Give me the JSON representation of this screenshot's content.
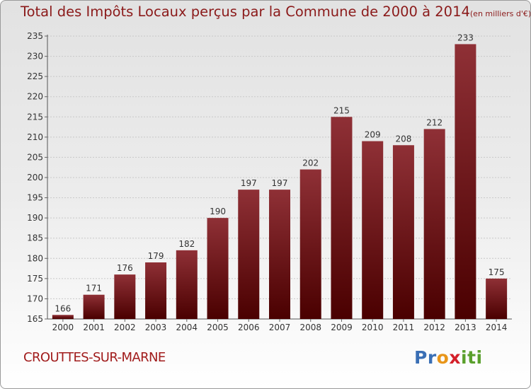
{
  "chart_data": {
    "type": "bar",
    "title": "Total des Impôts Locaux perçus par la Commune de 2000 à 2014",
    "title_unit": "(en milliers d'€)",
    "categories": [
      "2000",
      "2001",
      "2002",
      "2003",
      "2004",
      "2005",
      "2006",
      "2007",
      "2008",
      "2009",
      "2010",
      "2011",
      "2012",
      "2013",
      "2014"
    ],
    "values": [
      166,
      171,
      176,
      179,
      182,
      190,
      197,
      197,
      202,
      215,
      209,
      208,
      212,
      233,
      175
    ],
    "ylim": [
      165,
      235
    ],
    "yticks": [
      165,
      170,
      175,
      180,
      185,
      190,
      195,
      200,
      205,
      210,
      215,
      220,
      225,
      230,
      235
    ],
    "xlabel": "",
    "ylabel": "",
    "grid": true,
    "bar_color_top": "#8f3036",
    "bar_color_bottom": "#4a0000"
  },
  "commune": "CROUTTES-SUR-MARNE",
  "logo": {
    "letters": [
      "P",
      "r",
      "o",
      "x",
      "i",
      "t",
      "i"
    ],
    "colors": [
      "#3a6fb5",
      "#3a6fb5",
      "#e8961a",
      "#d4202a",
      "#5aa02c",
      "#5aa02c",
      "#5aa02c"
    ]
  },
  "colors": {
    "title": "#8b1a1a",
    "commune": "#a11c1c"
  }
}
